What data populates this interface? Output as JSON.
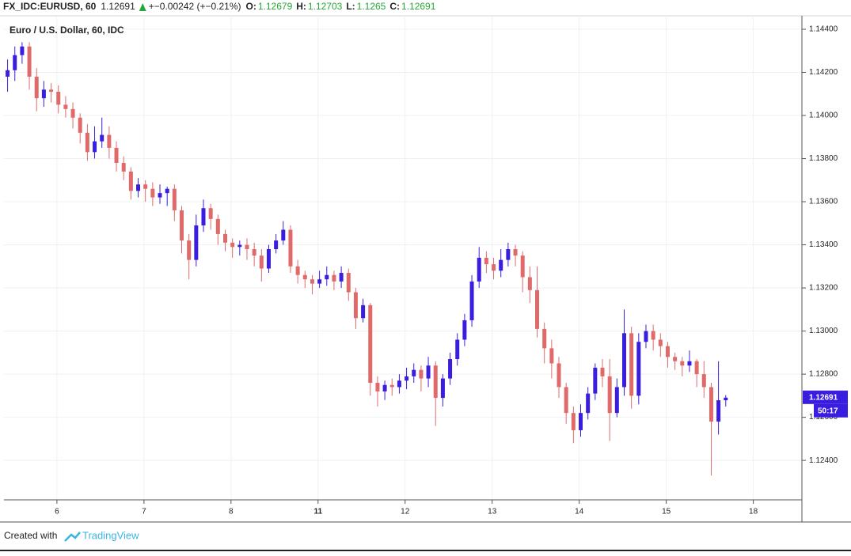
{
  "header": {
    "symbol": "FX_IDC:EURUSD, 60",
    "last": 1.12691,
    "change": "+−0.00242 (+−0.21%)",
    "o_label": "O:",
    "o": 1.12679,
    "h_label": "H:",
    "h": 1.12703,
    "l_label": "L:",
    "l": 1.1265,
    "c_label": "C:",
    "c": 1.12691
  },
  "footer": {
    "created": "Created with",
    "brand": "TradingView"
  },
  "chart_data": {
    "type": "candlestick",
    "title": "Euro / U.S. Dollar, 60, IDC",
    "up_color": "#3a1ee0",
    "down_color": "#e06a6a",
    "grid": true,
    "ylim": [
      1.12217,
      1.14455
    ],
    "yticks": [
      {
        "value": 1.124,
        "label": "1.12400"
      },
      {
        "value": 1.126,
        "label": "1.12600"
      },
      {
        "value": 1.128,
        "label": "1.12800"
      },
      {
        "value": 1.13,
        "label": "1.13000"
      },
      {
        "value": 1.132,
        "label": "1.13200"
      },
      {
        "value": 1.134,
        "label": "1.13400"
      },
      {
        "value": 1.136,
        "label": "1.13600"
      },
      {
        "value": 1.138,
        "label": "1.13800"
      },
      {
        "value": 1.14,
        "label": "1.14000"
      },
      {
        "value": 1.142,
        "label": "1.14200"
      },
      {
        "value": 1.144,
        "label": "1.14400"
      }
    ],
    "xlim": [
      0,
      110
    ],
    "xticks": [
      {
        "value": 7.3,
        "label": "6"
      },
      {
        "value": 19.3,
        "label": "7"
      },
      {
        "value": 31.3,
        "label": "8"
      },
      {
        "value": 43.3,
        "label": "11",
        "bold": true
      },
      {
        "value": 55.3,
        "label": "12"
      },
      {
        "value": 67.3,
        "label": "13"
      },
      {
        "value": 79.3,
        "label": "14"
      },
      {
        "value": 91.3,
        "label": "15"
      },
      {
        "value": 103.3,
        "label": "18"
      }
    ],
    "price_label": {
      "value": 1.12691,
      "label": "1.12691",
      "countdown": "50:17",
      "color": "#3a1ee0"
    },
    "open": [
      1.1418,
      1.1421,
      1.1428,
      1.1432,
      1.1418,
      1.1408,
      1.1412,
      1.1411,
      1.1405,
      1.1403,
      1.1399,
      1.1392,
      1.1383,
      1.1388,
      1.1391,
      1.1385,
      1.1378,
      1.1374,
      1.1365,
      1.1368,
      1.1366,
      1.1362,
      1.1364,
      1.1366,
      1.1356,
      1.1342,
      1.1333,
      1.1349,
      1.1357,
      1.1352,
      1.1345,
      1.1341,
      1.1339,
      1.134,
      1.1338,
      1.1335,
      1.1329,
      1.1338,
      1.1342,
      1.1347,
      1.133,
      1.1326,
      1.1324,
      1.1322,
      1.1324,
      1.1326,
      1.1323,
      1.1327,
      1.1318,
      1.1306,
      1.1312,
      1.1276,
      1.1272,
      1.1275,
      1.1274,
      1.1277,
      1.1279,
      1.1282,
      1.1278,
      1.1284,
      1.1269,
      1.1278,
      1.1287,
      1.1296,
      1.1305,
      1.1323,
      1.1334,
      1.1331,
      1.1328,
      1.1333,
      1.1338,
      1.1335,
      1.1325,
      1.1319,
      1.1301,
      1.1292,
      1.1285,
      1.1274,
      1.1262,
      1.1254,
      1.1262,
      1.1271,
      1.1283,
      1.1279,
      1.1262,
      1.1274,
      1.1299,
      1.127,
      1.1295,
      1.13,
      1.1296,
      1.1293,
      1.1288,
      1.1286,
      1.1284,
      1.1286,
      1.128,
      1.1274,
      1.1258,
      1.12679
    ],
    "high": [
      1.1426,
      1.1432,
      1.1434,
      1.1434,
      1.1422,
      1.1416,
      1.1415,
      1.1414,
      1.1409,
      1.1406,
      1.1401,
      1.1396,
      1.1395,
      1.1399,
      1.1395,
      1.1388,
      1.1381,
      1.1376,
      1.1371,
      1.137,
      1.1369,
      1.1368,
      1.1367,
      1.1368,
      1.1358,
      1.1345,
      1.1354,
      1.1361,
      1.1359,
      1.1354,
      1.1347,
      1.1343,
      1.1342,
      1.1343,
      1.1341,
      1.1338,
      1.134,
      1.1345,
      1.1351,
      1.1349,
      1.1333,
      1.1328,
      1.1326,
      1.1328,
      1.133,
      1.1328,
      1.133,
      1.1329,
      1.132,
      1.1315,
      1.1313,
      1.1279,
      1.1277,
      1.1278,
      1.128,
      1.1283,
      1.1285,
      1.1284,
      1.1288,
      1.1286,
      1.128,
      1.129,
      1.1299,
      1.1308,
      1.1326,
      1.1339,
      1.1337,
      1.1334,
      1.1338,
      1.1341,
      1.134,
      1.1337,
      1.133,
      1.133,
      1.1304,
      1.1296,
      1.1288,
      1.1276,
      1.1265,
      1.1266,
      1.1274,
      1.1285,
      1.1287,
      1.1287,
      1.1278,
      1.131,
      1.1302,
      1.1299,
      1.1303,
      1.1303,
      1.1299,
      1.1295,
      1.129,
      1.1288,
      1.1291,
      1.1287,
      1.1286,
      1.1276,
      1.1286,
      1.12703
    ],
    "low": [
      1.1411,
      1.1416,
      1.1424,
      1.1412,
      1.1402,
      1.1404,
      1.1406,
      1.1401,
      1.1399,
      1.1394,
      1.1387,
      1.1379,
      1.138,
      1.1385,
      1.138,
      1.1374,
      1.137,
      1.1361,
      1.1362,
      1.136,
      1.1358,
      1.1359,
      1.1358,
      1.1351,
      1.1336,
      1.1324,
      1.133,
      1.1346,
      1.1347,
      1.134,
      1.1337,
      1.1334,
      1.1335,
      1.1333,
      1.133,
      1.1323,
      1.1327,
      1.1336,
      1.134,
      1.1327,
      1.1322,
      1.132,
      1.1317,
      1.132,
      1.1321,
      1.1319,
      1.132,
      1.1314,
      1.1301,
      1.1304,
      1.127,
      1.1265,
      1.1268,
      1.127,
      1.1271,
      1.1273,
      1.1276,
      1.1272,
      1.1274,
      1.1256,
      1.1265,
      1.1275,
      1.1284,
      1.1293,
      1.1302,
      1.132,
      1.1327,
      1.1324,
      1.1325,
      1.133,
      1.133,
      1.1318,
      1.1313,
      1.1297,
      1.1285,
      1.1278,
      1.1269,
      1.1257,
      1.1248,
      1.1251,
      1.1259,
      1.1268,
      1.1274,
      1.1249,
      1.126,
      1.127,
      1.1264,
      1.1266,
      1.1292,
      1.1291,
      1.1288,
      1.1283,
      1.1282,
      1.1279,
      1.1281,
      1.1274,
      1.1269,
      1.1233,
      1.1252,
      1.1265
    ],
    "close": [
      1.1421,
      1.1428,
      1.1432,
      1.1418,
      1.1408,
      1.1412,
      1.1411,
      1.1405,
      1.1403,
      1.1399,
      1.1392,
      1.1383,
      1.1388,
      1.1391,
      1.1385,
      1.1378,
      1.1374,
      1.1365,
      1.1368,
      1.1366,
      1.1362,
      1.1364,
      1.1366,
      1.1356,
      1.1342,
      1.1333,
      1.1349,
      1.1357,
      1.1352,
      1.1345,
      1.1341,
      1.1339,
      1.134,
      1.1338,
      1.1335,
      1.1329,
      1.1338,
      1.1342,
      1.1347,
      1.133,
      1.1326,
      1.1324,
      1.1322,
      1.1324,
      1.1326,
      1.1323,
      1.1327,
      1.1318,
      1.1306,
      1.1312,
      1.1276,
      1.1272,
      1.1275,
      1.1274,
      1.1277,
      1.1279,
      1.1282,
      1.1278,
      1.1284,
      1.1269,
      1.1278,
      1.1287,
      1.1296,
      1.1305,
      1.1323,
      1.1334,
      1.1331,
      1.1328,
      1.1333,
      1.1338,
      1.1335,
      1.1325,
      1.1319,
      1.1301,
      1.1292,
      1.1285,
      1.1274,
      1.1262,
      1.1254,
      1.1262,
      1.1271,
      1.1283,
      1.1279,
      1.1262,
      1.1274,
      1.1299,
      1.127,
      1.1295,
      1.13,
      1.1296,
      1.1293,
      1.1288,
      1.1286,
      1.1284,
      1.1286,
      1.128,
      1.1274,
      1.1258,
      1.12679,
      1.12691
    ]
  }
}
